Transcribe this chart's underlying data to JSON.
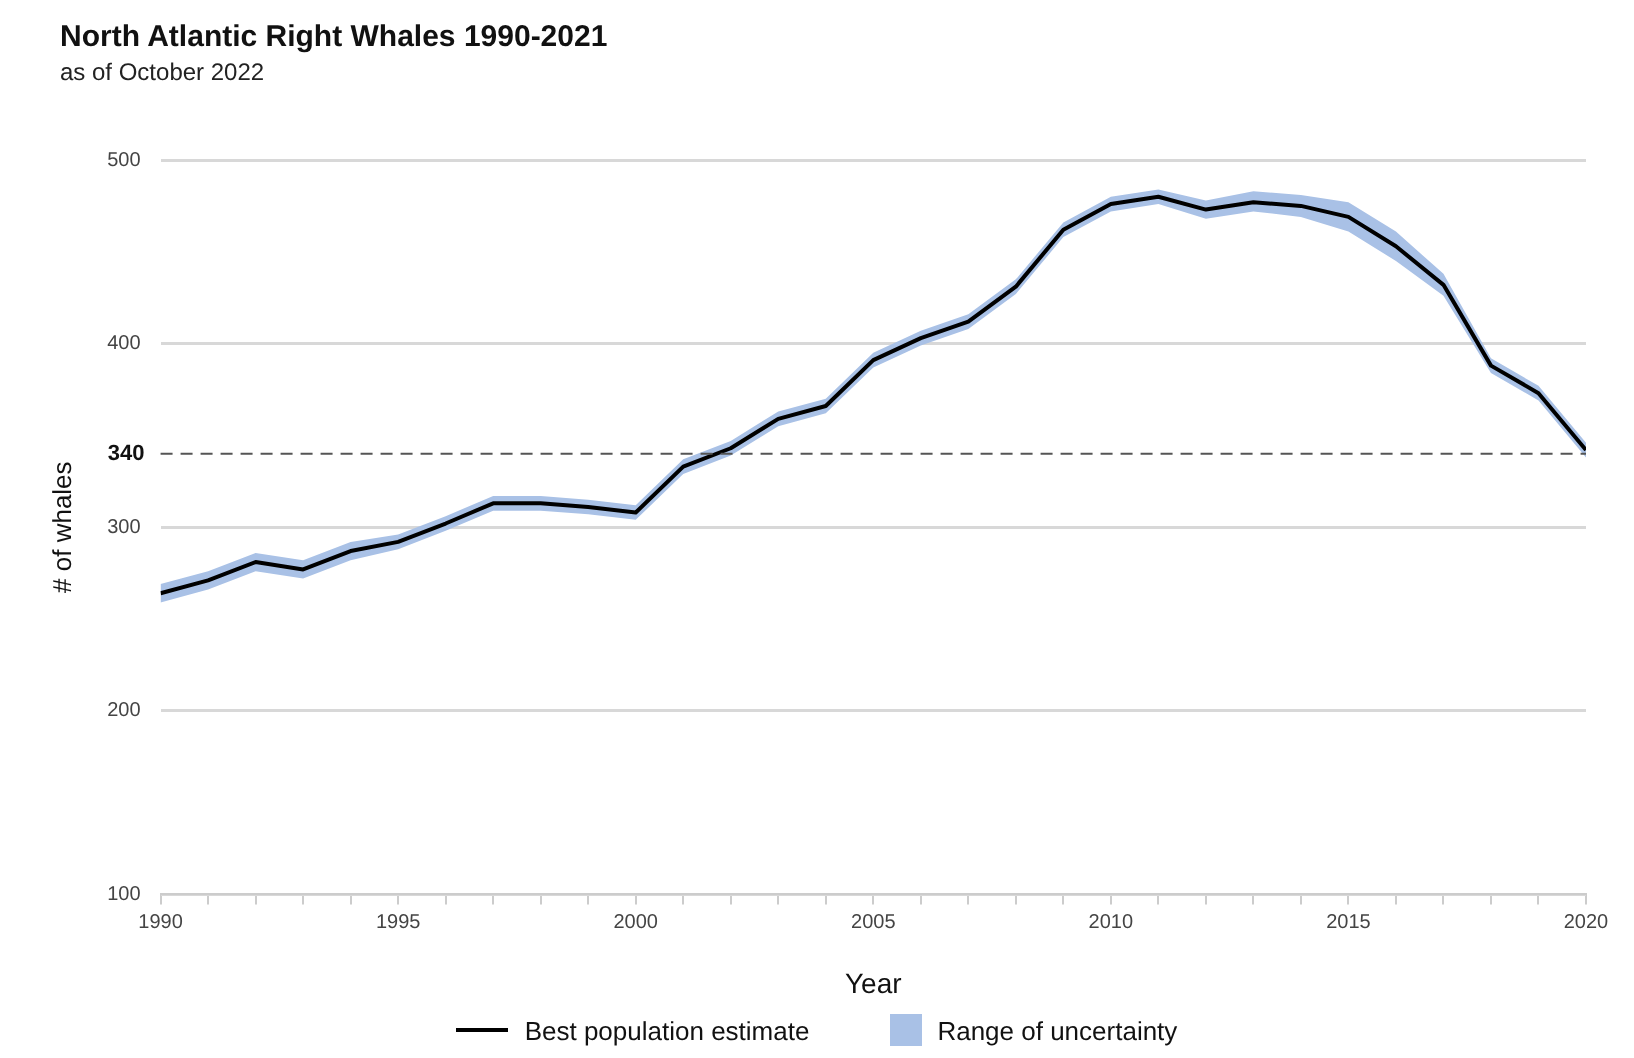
{
  "chart_data": {
    "type": "line",
    "title": "North Atlantic Right Whales 1990-2021",
    "subtitle": "as of October 2022",
    "xlabel": "Year",
    "ylabel": "# of whales",
    "x": [
      1990,
      1991,
      1992,
      1993,
      1994,
      1995,
      1996,
      1997,
      1998,
      1999,
      2000,
      2001,
      2002,
      2003,
      2004,
      2005,
      2006,
      2007,
      2008,
      2009,
      2010,
      2011,
      2012,
      2013,
      2014,
      2015,
      2016,
      2017,
      2018,
      2019,
      2020
    ],
    "series": [
      {
        "name": "Best population estimate",
        "color": "#000000",
        "values": [
          264,
          271,
          281,
          277,
          287,
          292,
          302,
          313,
          313,
          311,
          308,
          333,
          343,
          359,
          366,
          391,
          403,
          412,
          431,
          462,
          476,
          480,
          473,
          477,
          475,
          469,
          453,
          432,
          388,
          373,
          342
        ],
        "lower": [
          259,
          266,
          276,
          272,
          282,
          288,
          298,
          309,
          309,
          307,
          304,
          329,
          339,
          355,
          362,
          387,
          399,
          408,
          427,
          458,
          472,
          476,
          468,
          472,
          469,
          461,
          445,
          426,
          384,
          369,
          338
        ],
        "upper": [
          269,
          276,
          286,
          282,
          292,
          296,
          306,
          317,
          317,
          315,
          312,
          337,
          347,
          363,
          370,
          395,
          407,
          416,
          435,
          466,
          480,
          484,
          478,
          483,
          481,
          477,
          461,
          438,
          392,
          377,
          346
        ]
      }
    ],
    "annotations": [
      "Range of uncertainty"
    ],
    "xlim": [
      1990,
      2020
    ],
    "xticks": [
      1990,
      {
        "value": 1991,
        "label": null
      },
      {
        "value": 1992,
        "label": null
      },
      {
        "value": 1993,
        "label": null
      },
      {
        "value": 1994,
        "label": null
      },
      1995,
      {
        "value": 1996,
        "label": null
      },
      {
        "value": 1997,
        "label": null
      },
      {
        "value": 1998,
        "label": null
      },
      {
        "value": 1999,
        "label": null
      },
      2000,
      {
        "value": 2001,
        "label": null
      },
      {
        "value": 2002,
        "label": null
      },
      {
        "value": 2003,
        "label": null
      },
      {
        "value": 2004,
        "label": null
      },
      2005,
      {
        "value": 2006,
        "label": null
      },
      {
        "value": 2007,
        "label": null
      },
      {
        "value": 2008,
        "label": null
      },
      {
        "value": 2009,
        "label": null
      },
      2010,
      {
        "value": 2011,
        "label": null
      },
      {
        "value": 2012,
        "label": null
      },
      {
        "value": 2013,
        "label": null
      },
      {
        "value": 2014,
        "label": null
      },
      2015,
      {
        "value": 2016,
        "label": null
      },
      {
        "value": 2017,
        "label": null
      },
      {
        "value": 2018,
        "label": null
      },
      {
        "value": 2019,
        "label": null
      },
      2020
    ],
    "ylim": [
      100,
      500
    ],
    "yticks": [
      100,
      200,
      300,
      400,
      500
    ],
    "ref_lines": [
      {
        "axis": "y",
        "value": 340,
        "label": "340",
        "line_style": "dashed",
        "color": "#555555"
      }
    ],
    "grid": "y",
    "legend": "bottom",
    "marker": "none",
    "line_style": "solid"
  }
}
